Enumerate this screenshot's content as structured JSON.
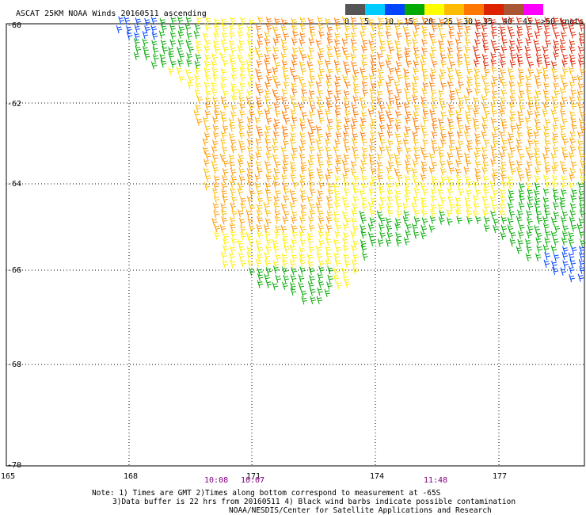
{
  "header": {
    "title": "ASCAT 25KM NOAA Winds 20160511 ascending"
  },
  "legend": {
    "scale": [
      {
        "label": "0",
        "color": "#555555"
      },
      {
        "label": "5",
        "color": "#00ccff"
      },
      {
        "label": "10",
        "color": "#0044ff"
      },
      {
        "label": "15",
        "color": "#00aa00"
      },
      {
        "label": "20",
        "color": "#ffff00"
      },
      {
        "label": "25",
        "color": "#ffbb00"
      },
      {
        "label": "30",
        "color": "#ff7700"
      },
      {
        "label": "35",
        "color": "#dd2200"
      },
      {
        "label": "40",
        "color": "#aa5533"
      },
      {
        "label": "45",
        "color": "#ff00ff"
      },
      {
        "label": ">50 knots",
        "color": "#660099"
      }
    ]
  },
  "axes": {
    "lat_labels": [
      "-60",
      "-62",
      "-64",
      "-66",
      "-68",
      "-70"
    ],
    "lon_labels": [
      "165",
      "168",
      "171",
      "174",
      "177"
    ]
  },
  "times": [
    "10:08",
    "10:07",
    "11:48"
  ],
  "notes": {
    "line1": "Note: 1) Times are GMT 2)Times along bottom correspond to measurement at -65S",
    "line2": "3)Data buffer is 22 hrs from 20160511 4) Black wind barbs indicate possible contamination",
    "line3": "NOAA/NESDIS/Center for Satellite Applications and Research"
  }
}
